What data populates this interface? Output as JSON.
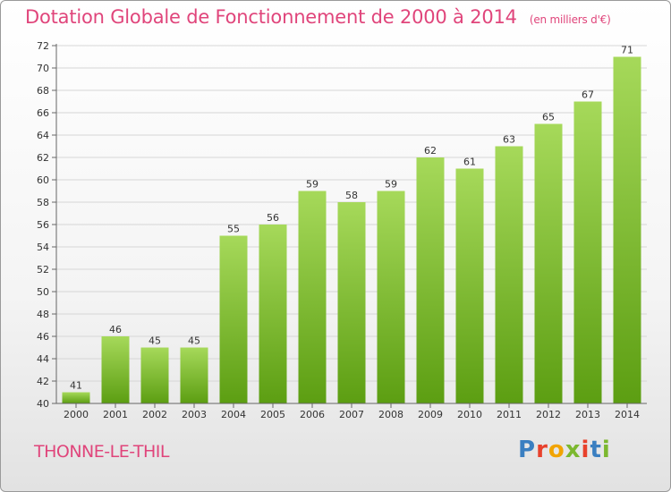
{
  "header": {
    "title": "Dotation Globale de Fonctionnement de 2000 à 2014",
    "subtitle": "(en milliers d'€)"
  },
  "footer": {
    "commune": "THONNE-LE-THIL",
    "logo": "Proxiti",
    "logo_colors": [
      "#3a7fc1",
      "#e8412c",
      "#f2a400",
      "#7cb82f",
      "#e8412c",
      "#3a7fc1",
      "#7cb82f"
    ]
  },
  "chart_data": {
    "type": "bar",
    "title": "Dotation Globale de Fonctionnement de 2000 à 2014",
    "subtitle": "(en milliers d'€)",
    "categories": [
      "2000",
      "2001",
      "2002",
      "2003",
      "2004",
      "2005",
      "2006",
      "2007",
      "2008",
      "2009",
      "2010",
      "2011",
      "2012",
      "2013",
      "2014"
    ],
    "values": [
      41,
      46,
      45,
      45,
      55,
      56,
      59,
      58,
      59,
      62,
      61,
      63,
      65,
      67,
      71
    ],
    "ylim": [
      40,
      72
    ],
    "yticks": [
      40,
      42,
      44,
      46,
      48,
      50,
      52,
      54,
      56,
      58,
      60,
      62,
      64,
      66,
      68,
      70,
      72
    ],
    "grid": true,
    "colors": {
      "bar_light": "#a6d95a",
      "bar_dark": "#5c9e12",
      "axis": "#666666",
      "text": "#333333"
    }
  }
}
